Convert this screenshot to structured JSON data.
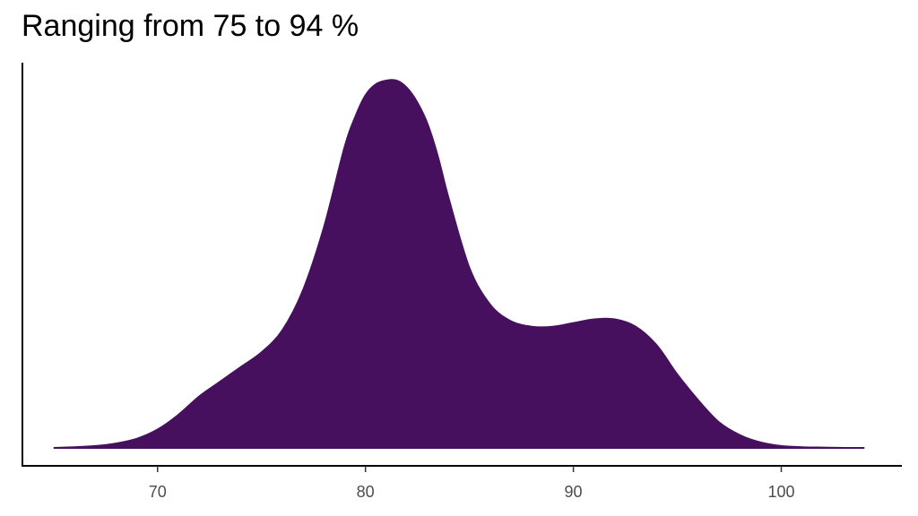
{
  "chart_data": {
    "type": "area",
    "title": "Ranging from 75 to 94 %",
    "xlabel": "",
    "ylabel": "",
    "xlim": [
      63.5,
      105.8
    ],
    "ylim": [
      0,
      1.05
    ],
    "x_ticks": [
      70,
      80,
      90,
      100
    ],
    "tick_labels": [
      "70",
      "80",
      "90",
      "100"
    ],
    "grid": false,
    "legend": "none",
    "fill_color": "#47105e",
    "series": [
      {
        "x": [
          65,
          66,
          67,
          68,
          69,
          70,
          71,
          72,
          73,
          74,
          75,
          76,
          77,
          78,
          79,
          79.5,
          80,
          80.5,
          81,
          81.5,
          82,
          82.5,
          83,
          83.5,
          84,
          85,
          86,
          87,
          88,
          89,
          90,
          91,
          92,
          93,
          94,
          95,
          96,
          97,
          98,
          99,
          100,
          101,
          102,
          103,
          104
        ],
        "y": [
          0.0,
          0.002,
          0.005,
          0.012,
          0.025,
          0.05,
          0.09,
          0.14,
          0.18,
          0.22,
          0.26,
          0.32,
          0.43,
          0.6,
          0.82,
          0.9,
          0.96,
          0.99,
          1.0,
          1.0,
          0.98,
          0.94,
          0.88,
          0.79,
          0.68,
          0.49,
          0.39,
          0.345,
          0.33,
          0.33,
          0.34,
          0.35,
          0.35,
          0.33,
          0.28,
          0.2,
          0.13,
          0.07,
          0.035,
          0.015,
          0.005,
          0.002,
          0.001,
          0.0,
          0.0
        ]
      }
    ]
  }
}
